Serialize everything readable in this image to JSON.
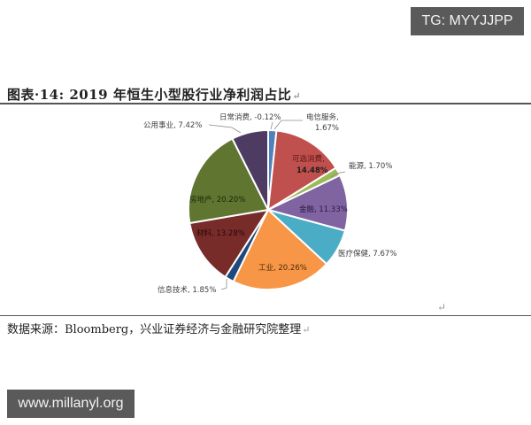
{
  "watermarks": {
    "top_right": "TG: MYYJJPP",
    "bottom_left": "www.millanyl.org"
  },
  "figure": {
    "title": "图表·14:  2019 年恒生小型股行业净利润占比",
    "source": "数据来源：Bloomberg，兴业证券经济与金融研究院整理",
    "return_mark": "↵"
  },
  "chart_data": {
    "type": "pie",
    "title": "2019 年恒生小型股行业净利润占比",
    "start_angle_deg": 0,
    "direction": "clockwise",
    "slices": [
      {
        "label": "电信服务",
        "value": 1.67,
        "display": "电信服务,\n1.67%",
        "color": "#4f81bd"
      },
      {
        "label": "可选消费",
        "value": 14.48,
        "display": "可选消费,\n14.48%",
        "color": "#c0504d"
      },
      {
        "label": "能源",
        "value": 1.7,
        "display": "能源, 1.70%",
        "color": "#9bbb59"
      },
      {
        "label": "金融",
        "value": 11.33,
        "display": "金融, 11.33%",
        "color": "#8064a2"
      },
      {
        "label": "医疗保健",
        "value": 7.67,
        "display": "医疗保健, 7.67%",
        "color": "#4bacc6"
      },
      {
        "label": "工业",
        "value": 20.26,
        "display": "工业, 20.26%",
        "color": "#f79646"
      },
      {
        "label": "信息技术",
        "value": 1.85,
        "display": "信息技术, 1.85%",
        "color": "#1f497d"
      },
      {
        "label": "材料",
        "value": 13.28,
        "display": "材料, 13.28%",
        "color": "#772c2a"
      },
      {
        "label": "房地产",
        "value": 20.2,
        "display": "房地产, 20.20%",
        "color": "#5f7530"
      },
      {
        "label": "公用事业",
        "value": 7.42,
        "display": "公用事业, 7.42%",
        "color": "#4d3b62"
      },
      {
        "label": "日常消费",
        "value": -0.12,
        "display": "日常消费, -0.12%",
        "color": "#4bacc6"
      }
    ],
    "legend": "none (data labels on/next to slices)"
  },
  "labels": {
    "s0a": "电信服务,",
    "s0b": "1.67%",
    "s1a": "可选消费,",
    "s1b": "14.48%",
    "s2": "能源, 1.70%",
    "s3": "金融, 11.33%",
    "s4": "医疗保健, 7.67%",
    "s5": "工业, 20.26%",
    "s6": "信息技术, 1.85%",
    "s7": "材料, 13.28%",
    "s8": "房地产, 20.20%",
    "s9": "公用事业, 7.42%",
    "s10": "日常消费, -0.12%"
  }
}
